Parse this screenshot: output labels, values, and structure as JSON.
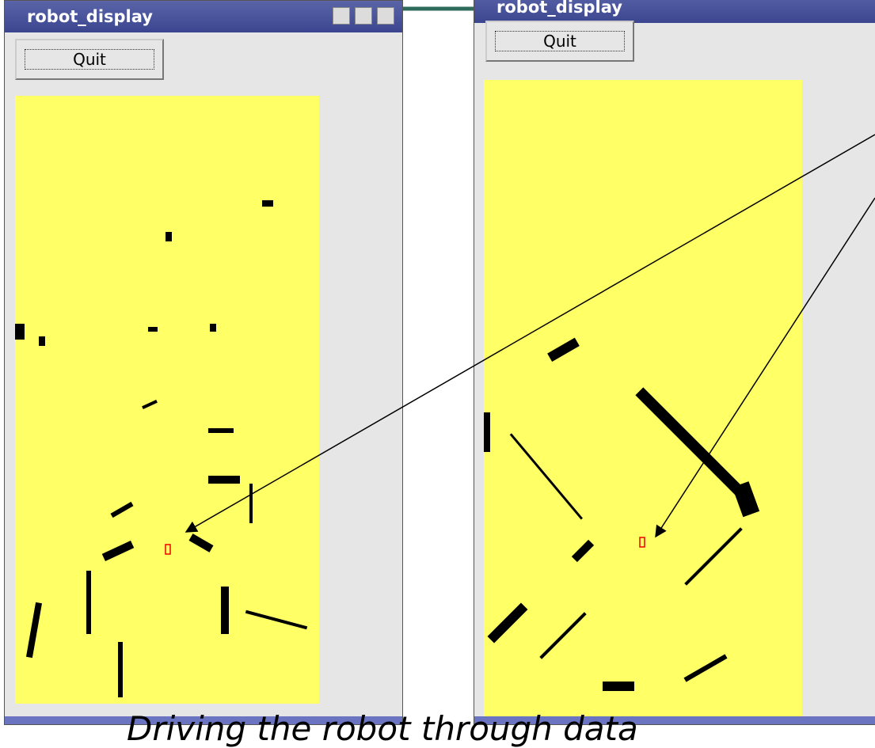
{
  "windows": [
    {
      "title": "robot_display",
      "button": "Quit"
    },
    {
      "title": "robot_display",
      "button": "Quit"
    }
  ],
  "caption": "Driving the robot through data"
}
